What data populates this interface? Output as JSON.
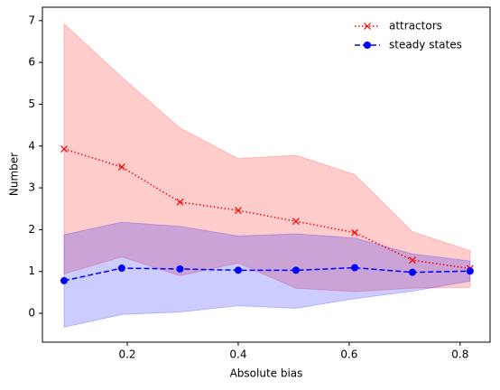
{
  "chart_data": {
    "type": "line",
    "xlabel": "Absolute bias",
    "ylabel": "Number",
    "x": [
      0.086,
      0.19,
      0.295,
      0.4,
      0.504,
      0.61,
      0.714,
      0.818
    ],
    "series": [
      {
        "name": "attractors",
        "color": "#ff0000",
        "marker": "x",
        "linestyle": "dotted",
        "values": [
          3.93,
          3.5,
          2.66,
          2.46,
          2.2,
          1.93,
          1.27,
          1.07
        ],
        "upper": [
          6.92,
          5.65,
          4.43,
          3.7,
          3.78,
          3.32,
          1.95,
          1.5
        ],
        "lower": [
          0.94,
          1.35,
          0.9,
          1.2,
          0.6,
          0.52,
          0.6,
          0.62
        ]
      },
      {
        "name": "steady states",
        "color": "#0000ff",
        "marker": "o",
        "linestyle": "dashed",
        "values": [
          0.78,
          1.08,
          1.06,
          1.03,
          1.03,
          1.09,
          0.98,
          1.01
        ],
        "upper": [
          1.88,
          2.18,
          2.08,
          1.85,
          1.9,
          1.8,
          1.42,
          1.25
        ],
        "lower": [
          -0.33,
          -0.03,
          0.03,
          0.18,
          0.12,
          0.35,
          0.53,
          0.77
        ]
      }
    ],
    "band_opacity": 0.2,
    "xlim": [
      0.047,
      0.854
    ],
    "xticks": [
      0.2,
      0.4,
      0.6,
      0.8
    ],
    "ylim": [
      -0.69,
      7.32
    ],
    "yticks": [
      0,
      1,
      2,
      3,
      4,
      5,
      6,
      7
    ],
    "legend": "upper right"
  }
}
